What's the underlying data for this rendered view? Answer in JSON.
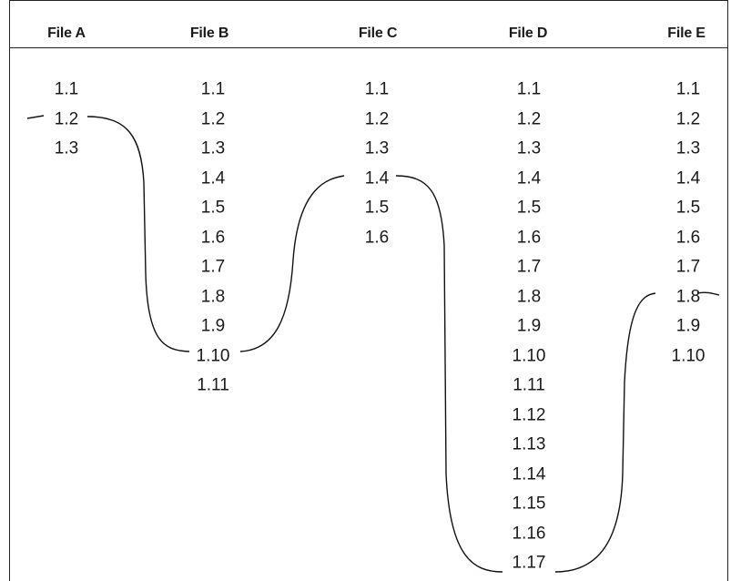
{
  "files": [
    {
      "name": "File A",
      "revisions": [
        "1.1",
        "1.2",
        "1.3"
      ]
    },
    {
      "name": "File B",
      "revisions": [
        "1.1",
        "1.2",
        "1.3",
        "1.4",
        "1.5",
        "1.6",
        "1.7",
        "1.8",
        "1.9",
        "1.10",
        "1.11"
      ]
    },
    {
      "name": "File C",
      "revisions": [
        "1.1",
        "1.2",
        "1.3",
        "1.4",
        "1.5",
        "1.6"
      ]
    },
    {
      "name": "File D",
      "revisions": [
        "1.1",
        "1.2",
        "1.3",
        "1.4",
        "1.5",
        "1.6",
        "1.7",
        "1.8",
        "1.9",
        "1.10",
        "1.11",
        "1.12",
        "1.13",
        "1.14",
        "1.15",
        "1.16",
        "1.17"
      ]
    },
    {
      "name": "File E",
      "revisions": [
        "1.1",
        "1.2",
        "1.3",
        "1.4",
        "1.5",
        "1.6",
        "1.7",
        "1.8",
        "1.9",
        "1.10"
      ]
    }
  ],
  "tag_line": {
    "selected": [
      {
        "file": "File A",
        "revision": "1.2"
      },
      {
        "file": "File B",
        "revision": "1.10"
      },
      {
        "file": "File C",
        "revision": "1.4"
      },
      {
        "file": "File D",
        "revision": "1.17"
      },
      {
        "file": "File E",
        "revision": "1.8"
      }
    ]
  },
  "colors": {
    "ink": "#1a1a1a",
    "background": "#ffffff"
  }
}
